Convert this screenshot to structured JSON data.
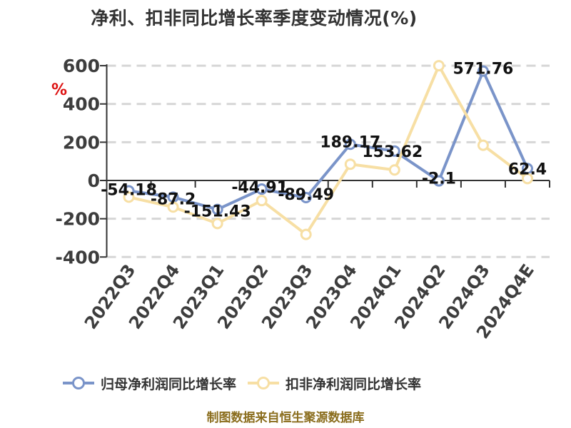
{
  "title": "净利、扣非同比增长率季度变动情况(%)",
  "y_axis_unit": "%",
  "footer": "制图数据来自恒生聚源数据库",
  "colors": {
    "series1": "#7A94C9",
    "series2": "#F7DFA4",
    "grid": "#D6D6D6",
    "axis": "#333333",
    "tick_text": "#3D3D3D",
    "data_label": "#111111",
    "title": "#333333",
    "legend_text": "#333333",
    "footer": "#8A6D1D",
    "unit": "#DD1111",
    "background": "#FFFFFF"
  },
  "legend": {
    "items": [
      {
        "label": "归母净利润同比增长率",
        "color_key": "series1"
      },
      {
        "label": "扣非净利润同比增长率",
        "color_key": "series2"
      }
    ]
  },
  "chart_data": {
    "type": "line",
    "title": "净利、扣非同比增长率季度变动情况(%)",
    "ylabel": "%",
    "xlabel": "",
    "categories": [
      "2022Q3",
      "2022Q4",
      "2023Q1",
      "2023Q2",
      "2023Q3",
      "2023Q4",
      "2024Q1",
      "2024Q2",
      "2024Q3",
      "2024Q4E"
    ],
    "series": [
      {
        "name": "归母净利润同比增长率",
        "color_key": "series1",
        "values": [
          -54.18,
          -87.2,
          -151.43,
          -44.91,
          -89.49,
          189.17,
          153.62,
          -2.1,
          571.76,
          62.4
        ],
        "data_labels": [
          "-54.18",
          "-87.2",
          "-151.43",
          "-44.91",
          "-89.49",
          "189.17",
          "153.62",
          "-2.1",
          "571.76",
          "62.4"
        ],
        "labels_shown": true
      },
      {
        "name": "扣非净利润同比增长率",
        "color_key": "series2",
        "values": [
          -87,
          -139,
          -225,
          -105,
          -282,
          85,
          55,
          600,
          184,
          10
        ],
        "data_labels": [],
        "labels_shown": false
      }
    ],
    "ylim": [
      -400,
      600
    ],
    "y_ticks": [
      600,
      400,
      200,
      0,
      -200,
      -400
    ],
    "grid": "dashed-horizontal",
    "legend_position": "bottom",
    "x_label_rotation": 55
  }
}
